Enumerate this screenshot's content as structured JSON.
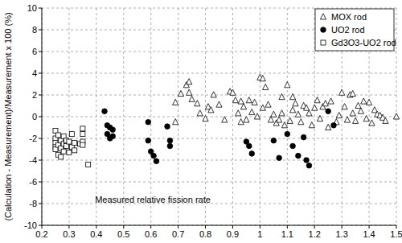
{
  "chart_data": {
    "type": "scatter",
    "x_label": "Measured relative fission rate",
    "y_label": "(Calculation - Measurement)/Measurement x 100 (%)",
    "xlim": [
      0.2,
      1.5
    ],
    "ylim": [
      -10,
      10
    ],
    "xticks": [
      0.2,
      0.3,
      0.4,
      0.5,
      0.6,
      0.7,
      0.8,
      0.9,
      1,
      1.1,
      1.2,
      1.3,
      1.4,
      1.5
    ],
    "yticks": [
      -10,
      -8,
      -6,
      -4,
      -2,
      0,
      2,
      4,
      6,
      8,
      10
    ],
    "grid": true,
    "legend": "top-right",
    "series": [
      {
        "name": "MOX rod",
        "color": "#000000",
        "marker": "triangle-open",
        "x": [
          0.69,
          0.69,
          0.71,
          0.73,
          0.74,
          0.74,
          0.75,
          0.77,
          0.78,
          0.8,
          0.81,
          0.82,
          0.83,
          0.85,
          0.87,
          0.89,
          0.9,
          0.91,
          0.92,
          0.93,
          0.93,
          0.94,
          0.96,
          0.97,
          0.98,
          0.99,
          1.0,
          1.01,
          1.01,
          1.02,
          1.03,
          1.04,
          1.05,
          1.06,
          1.07,
          1.08,
          1.08,
          1.09,
          1.1,
          1.11,
          1.12,
          1.13,
          1.14,
          1.15,
          1.16,
          1.17,
          1.18,
          1.19,
          1.2,
          1.21,
          1.22,
          1.23,
          1.24,
          1.26,
          1.28,
          1.29,
          1.3,
          1.31,
          1.32,
          1.33,
          1.34,
          1.34,
          1.35,
          1.36,
          1.37,
          1.38,
          1.39,
          1.4,
          1.41,
          1.42,
          1.43,
          1.44,
          1.45,
          1.46,
          1.5,
          1.25,
          1.12,
          0.95
        ],
        "values": [
          1.3,
          -0.5,
          2.1,
          2.9,
          3.2,
          2.2,
          1.6,
          1.2,
          0.3,
          -0.2,
          0.9,
          0.6,
          2.0,
          1.1,
          -0.3,
          2.3,
          2.2,
          1.5,
          0.3,
          1.4,
          -0.5,
          0.9,
          1.5,
          0.4,
          1.3,
          0.0,
          3.6,
          3.5,
          0.8,
          2.7,
          1.1,
          -0.3,
          0.2,
          -0.6,
          -0.3,
          1.8,
          0.3,
          -0.8,
          2.9,
          -0.4,
          0.6,
          1.2,
          0.2,
          -0.5,
          1.0,
          0.8,
          0.3,
          -0.8,
          0.8,
          1.5,
          -0.2,
          0.9,
          1.2,
          1.4,
          -0.5,
          0.1,
          2.2,
          0.9,
          -0.3,
          2.0,
          2.1,
          0.3,
          -0.4,
          1.0,
          0.5,
          1.4,
          -0.2,
          1.3,
          -0.6,
          0.6,
          0.2,
          0.1,
          -0.1,
          -0.4,
          0.0,
          -1.0,
          1.8,
          -0.3
        ]
      },
      {
        "name": "UO2 rod",
        "color": "#000000",
        "marker": "circle",
        "x": [
          0.43,
          0.44,
          0.44,
          0.45,
          0.45,
          0.46,
          0.46,
          0.59,
          0.59,
          0.6,
          0.61,
          0.62,
          0.66,
          0.67,
          0.67,
          0.95,
          0.96,
          0.97,
          1.05,
          1.07,
          1.1,
          1.12,
          1.14,
          1.16,
          1.17,
          1.18,
          1.25,
          1.27
        ],
        "values": [
          0.5,
          -0.8,
          -1.6,
          -1.0,
          -2.0,
          -1.2,
          -1.8,
          -0.5,
          -2.2,
          -3.2,
          -3.6,
          -4.1,
          -0.9,
          -2.2,
          -2.7,
          -2.3,
          -2.7,
          -3.4,
          -2.2,
          -3.8,
          -1.6,
          -2.7,
          -3.6,
          -1.9,
          -4.0,
          -4.5,
          0.5,
          -0.8
        ]
      },
      {
        "name": "Gd3O3-UO2 rod",
        "color": "#000000",
        "marker": "square-open",
        "x": [
          0.25,
          0.25,
          0.25,
          0.25,
          0.25,
          0.26,
          0.26,
          0.27,
          0.27,
          0.28,
          0.28,
          0.28,
          0.29,
          0.29,
          0.3,
          0.3,
          0.31,
          0.31,
          0.32,
          0.32,
          0.34,
          0.35,
          0.35,
          0.35,
          0.35,
          0.37,
          0.26,
          0.27
        ],
        "values": [
          -1.3,
          -2.0,
          -2.4,
          -2.8,
          -3.0,
          -3.5,
          -2.6,
          -2.2,
          -2.9,
          -1.8,
          -2.5,
          -3.2,
          -2.2,
          -2.7,
          -2.3,
          -3.3,
          -1.6,
          -2.8,
          -2.4,
          -3.1,
          -2.5,
          -1.1,
          -1.6,
          -2.3,
          -2.6,
          -4.4,
          -1.7,
          -3.7
        ]
      }
    ]
  }
}
